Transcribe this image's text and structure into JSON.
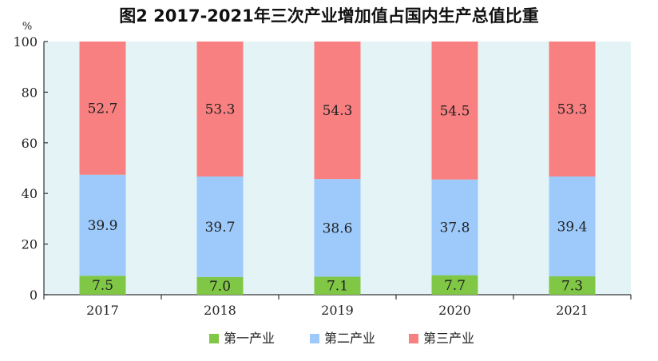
{
  "chart_data": {
    "type": "bar",
    "stacked": true,
    "title": "图2 2017-2021年三次产业增加值占国内生产总值比重",
    "ylabel": "%",
    "xlabel": "",
    "ylim": [
      0,
      100
    ],
    "yticks": [
      0,
      20,
      40,
      60,
      80,
      100
    ],
    "categories": [
      "2017",
      "2018",
      "2019",
      "2020",
      "2021"
    ],
    "series": [
      {
        "name": "第一产业",
        "color": "#7fc745",
        "values": [
          7.5,
          7.0,
          7.1,
          7.7,
          7.3
        ]
      },
      {
        "name": "第二产业",
        "color": "#9dcafb",
        "values": [
          39.9,
          39.7,
          38.6,
          37.8,
          39.4
        ]
      },
      {
        "name": "第三产业",
        "color": "#f98080",
        "values": [
          52.7,
          53.3,
          54.3,
          54.5,
          53.3
        ]
      }
    ],
    "value_labels": [
      [
        "7.5",
        "7.0",
        "7.1",
        "7.7",
        "7.3"
      ],
      [
        "39.9",
        "39.7",
        "38.6",
        "37.8",
        "39.4"
      ],
      [
        "52.7",
        "53.3",
        "54.3",
        "54.5",
        "53.3"
      ]
    ],
    "plot_background": "#e4f4f6",
    "grid": false,
    "legend_position": "bottom"
  }
}
